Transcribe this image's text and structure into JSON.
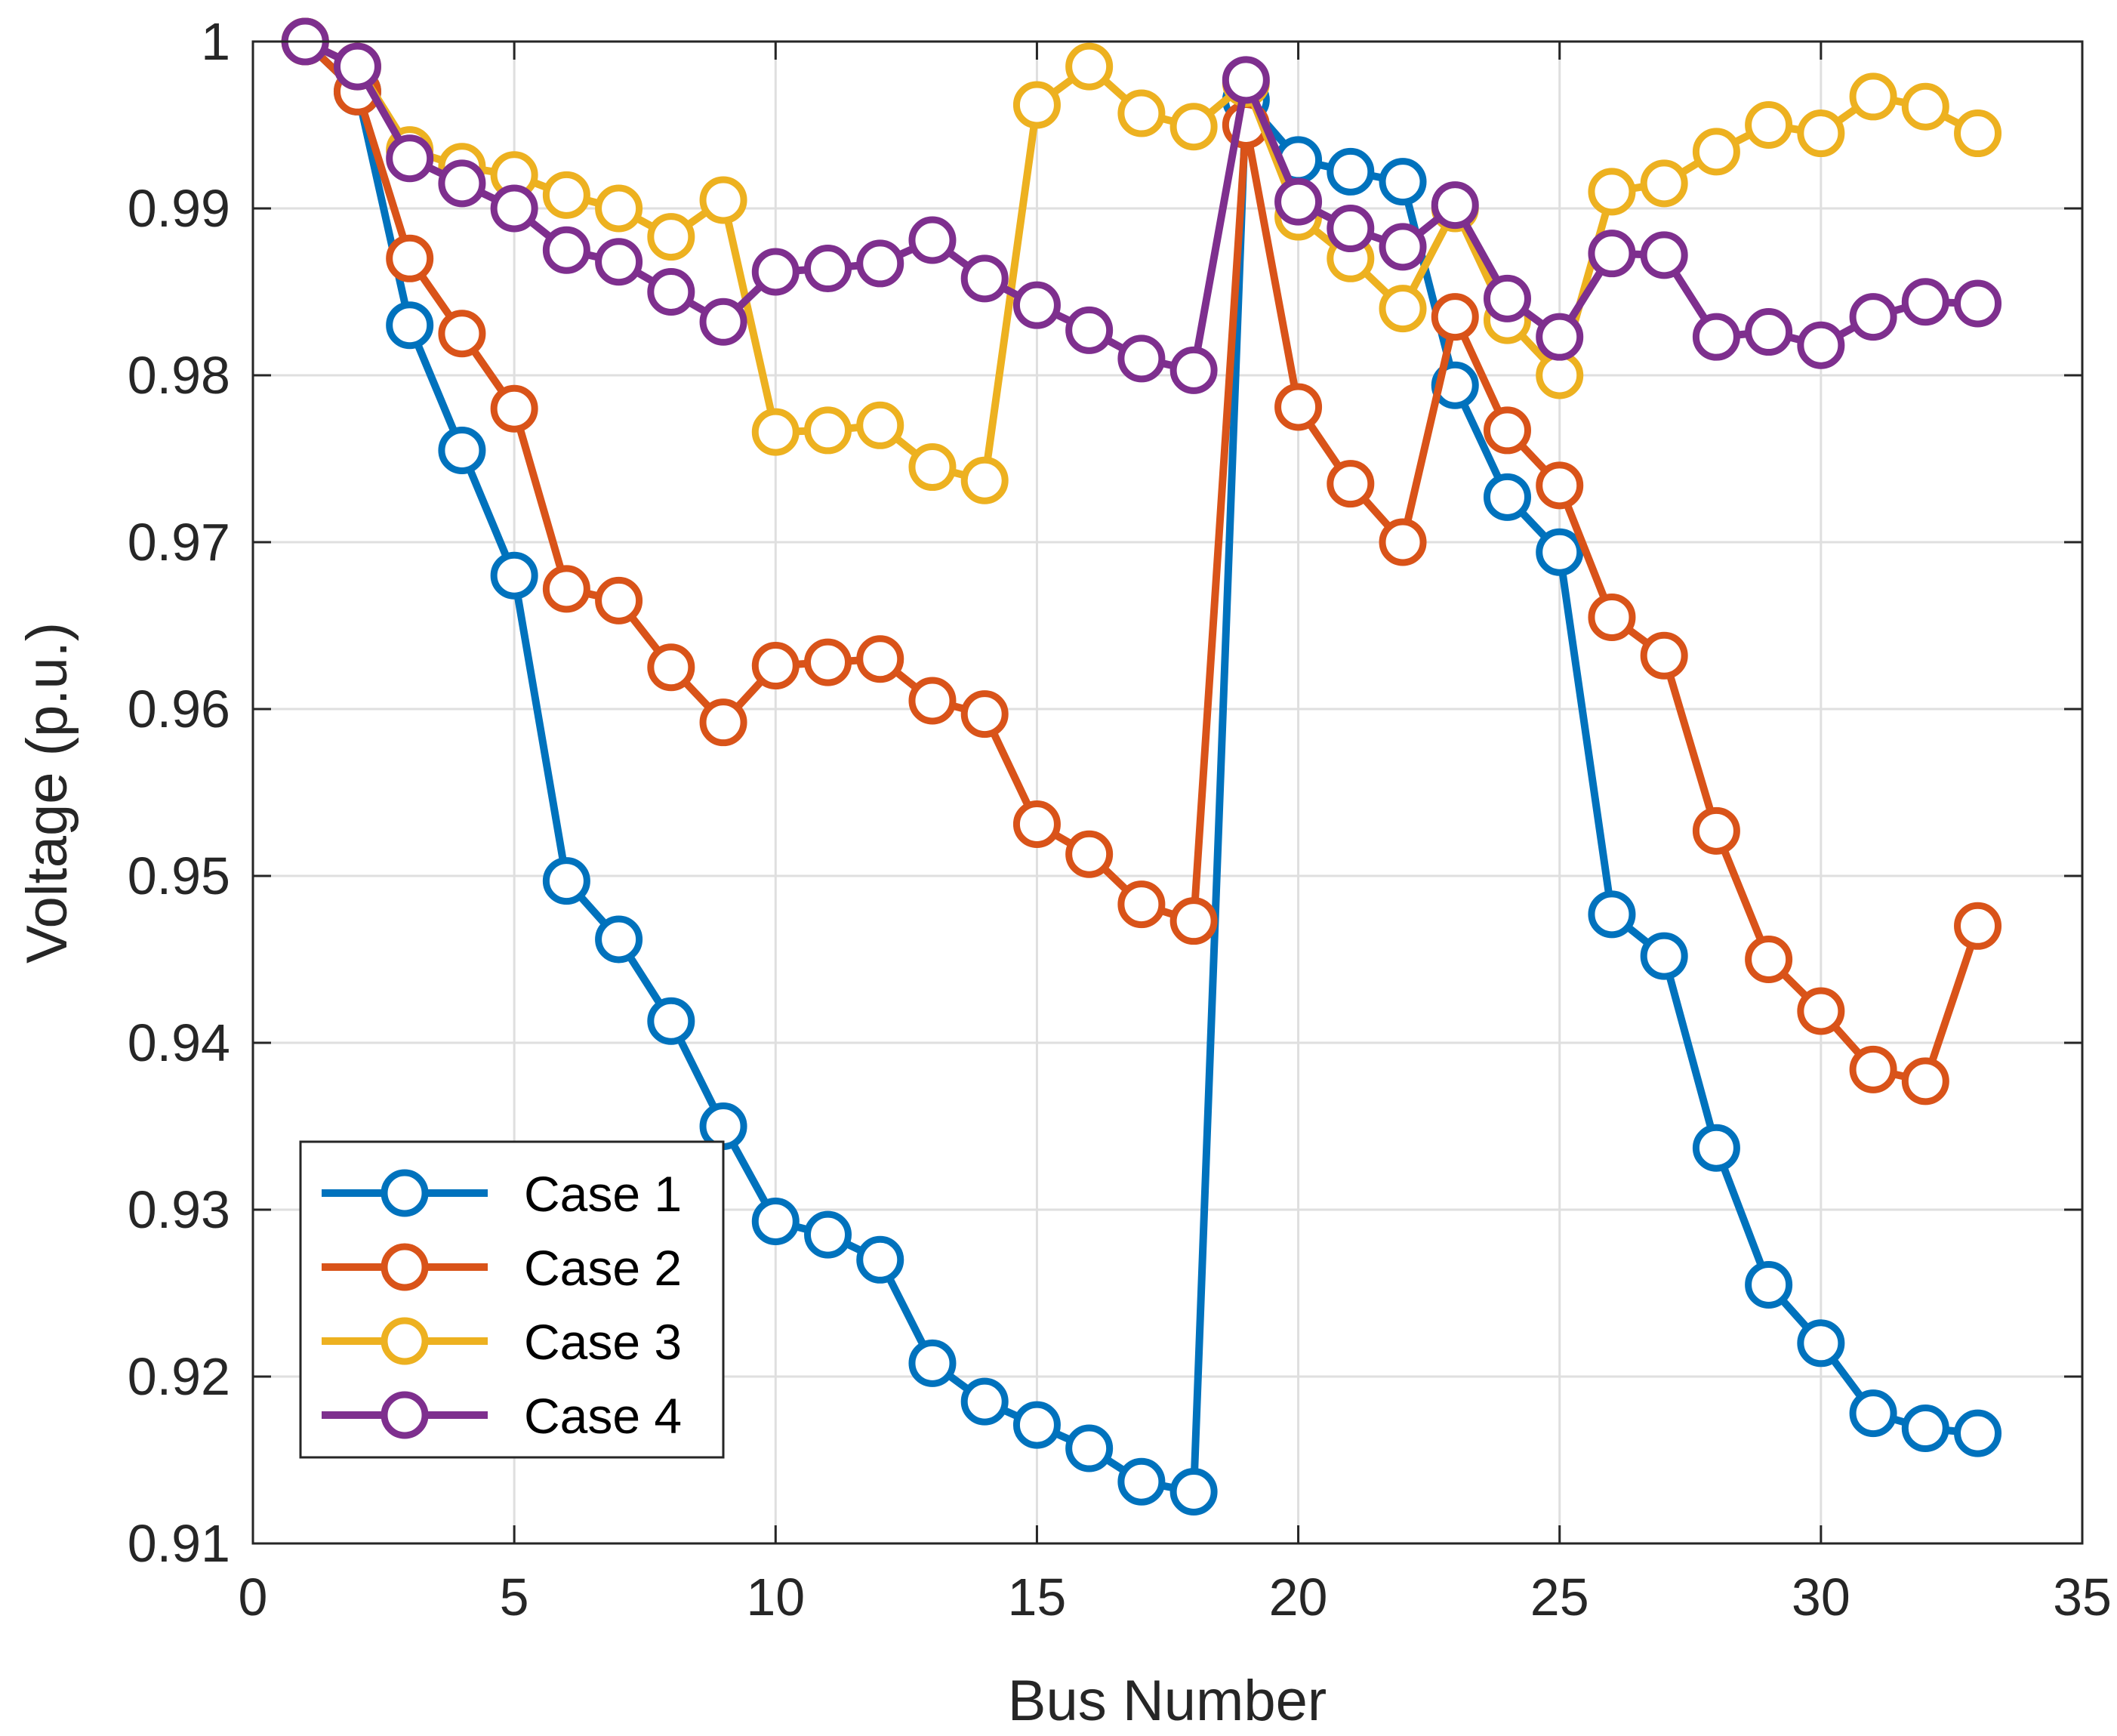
{
  "chart_data": {
    "type": "line",
    "title": "",
    "xlabel": "Bus Number",
    "ylabel": "Voltage (p.u.)",
    "xlim": [
      0,
      35
    ],
    "ylim": [
      0.91,
      1.0
    ],
    "xticks": [
      0,
      5,
      10,
      15,
      20,
      25,
      30,
      35
    ],
    "xtick_labels": [
      "0",
      "5",
      "10",
      "15",
      "20",
      "25",
      "30",
      "35"
    ],
    "yticks": [
      0.91,
      0.92,
      0.93,
      0.94,
      0.95,
      0.96,
      0.97,
      0.98,
      0.99,
      1.0
    ],
    "ytick_labels": [
      "0.91",
      "0.92",
      "0.93",
      "0.94",
      "0.95",
      "0.96",
      "0.97",
      "0.98",
      "0.99",
      "1"
    ],
    "grid": true,
    "legend_position": "bottom-left",
    "marker": "circle",
    "x": [
      1,
      2,
      3,
      4,
      5,
      6,
      7,
      8,
      9,
      10,
      11,
      12,
      13,
      14,
      15,
      16,
      17,
      18,
      19,
      20,
      21,
      22,
      23,
      24,
      25,
      26,
      27,
      28,
      29,
      30,
      31,
      32,
      33
    ],
    "series": [
      {
        "name": "Case 1",
        "color": "#0072BD",
        "values": [
          1.0,
          0.997,
          0.983,
          0.9755,
          0.968,
          0.9497,
          0.9462,
          0.9413,
          0.935,
          0.9293,
          0.9285,
          0.927,
          0.9208,
          0.9185,
          0.9171,
          0.9157,
          0.9137,
          0.9131,
          0.9965,
          0.9929,
          0.9922,
          0.9916,
          0.9794,
          0.9727,
          0.9694,
          0.9477,
          0.9452,
          0.9337,
          0.9255,
          0.922,
          0.9178,
          0.9169,
          0.9166
        ]
      },
      {
        "name": "Case 2",
        "color": "#D95319",
        "values": [
          1.0,
          0.997,
          0.987,
          0.9825,
          0.978,
          0.9672,
          0.9665,
          0.9625,
          0.9592,
          0.9626,
          0.9628,
          0.963,
          0.9605,
          0.9597,
          0.9531,
          0.9513,
          0.9483,
          0.9473,
          0.995,
          0.9781,
          0.9735,
          0.97,
          0.9835,
          0.9767,
          0.9734,
          0.9655,
          0.9632,
          0.9527,
          0.945,
          0.9419,
          0.9384,
          0.9377,
          0.947
        ]
      },
      {
        "name": "Case 3",
        "color": "#EDB120",
        "values": [
          1.0,
          0.9985,
          0.9935,
          0.9925,
          0.992,
          0.9908,
          0.99,
          0.9883,
          0.9905,
          0.9766,
          0.9767,
          0.977,
          0.9745,
          0.9737,
          0.9962,
          0.9985,
          0.9957,
          0.9949,
          0.9975,
          0.9895,
          0.987,
          0.984,
          0.99,
          0.9833,
          0.98,
          0.991,
          0.9915,
          0.9934,
          0.995,
          0.9945,
          0.9967,
          0.9961,
          0.9945
        ]
      },
      {
        "name": "Case 4",
        "color": "#7E2F8E",
        "values": [
          1.0,
          0.9985,
          0.993,
          0.9915,
          0.99,
          0.9875,
          0.9868,
          0.985,
          0.9832,
          0.9862,
          0.9864,
          0.9867,
          0.9881,
          0.9858,
          0.9842,
          0.9827,
          0.981,
          0.9803,
          0.9977,
          0.9904,
          0.9888,
          0.9877,
          0.9902,
          0.9846,
          0.9823,
          0.9873,
          0.9872,
          0.9823,
          0.9826,
          0.9818,
          0.9835,
          0.9844,
          0.9843
        ]
      }
    ]
  }
}
